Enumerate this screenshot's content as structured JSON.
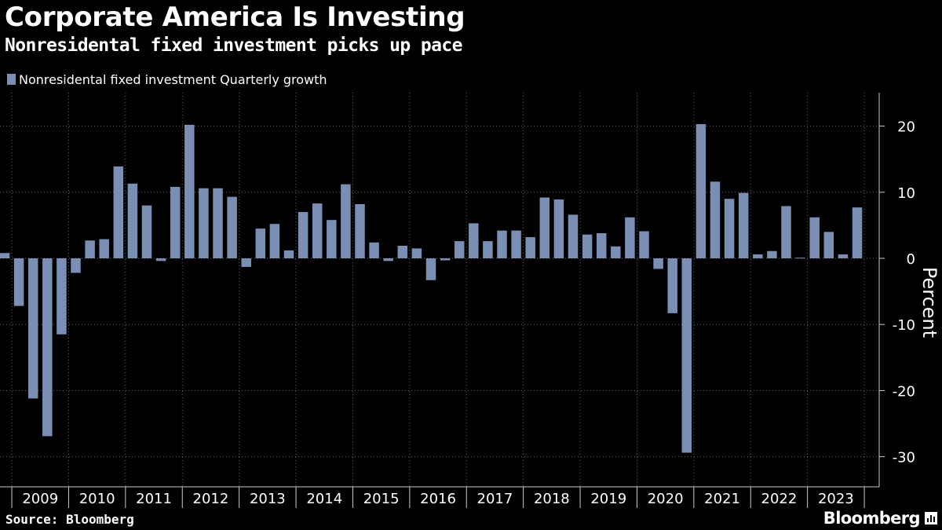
{
  "header": {
    "title": "Corporate America Is Investing",
    "subtitle": "Nonresidental fixed investment picks up pace"
  },
  "legend": {
    "label": "Nonresidental fixed investment Quarterly growth"
  },
  "footer": {
    "source": "Source: Bloomberg",
    "brand": "Bloomberg"
  },
  "colors": {
    "bar": "#7b8fb5",
    "background": "#000000",
    "grid": "#666666",
    "text": "#ffffff"
  },
  "chart_data": {
    "type": "bar",
    "title": "Corporate America Is Investing",
    "subtitle": "Nonresidental fixed investment picks up pace",
    "ylabel": "Percent",
    "ylim": [
      -35,
      25
    ],
    "yticks": [
      20,
      10,
      0,
      -10,
      -20,
      -30
    ],
    "legend_position": "top-left",
    "grid": true,
    "year_labels": [
      "2009",
      "2010",
      "2011",
      "2012",
      "2013",
      "2014",
      "2015",
      "2016",
      "2017",
      "2018",
      "2019",
      "2020",
      "2021",
      "2022",
      "2023"
    ],
    "series": [
      {
        "name": "Nonresidental fixed investment Quarterly growth",
        "start": "2008 Q4",
        "values": [
          0.8,
          -7.2,
          -21.2,
          -26.9,
          -11.5,
          -2.2,
          2.7,
          2.9,
          13.9,
          11.3,
          8.0,
          -0.4,
          10.8,
          20.2,
          10.6,
          10.6,
          9.3,
          -1.3,
          4.5,
          5.2,
          1.2,
          7.0,
          8.3,
          5.8,
          11.2,
          8.2,
          2.4,
          -0.4,
          1.9,
          1.5,
          -3.3,
          -0.3,
          2.6,
          5.3,
          2.6,
          4.2,
          4.2,
          3.2,
          9.2,
          8.9,
          6.6,
          3.6,
          3.8,
          1.8,
          6.2,
          4.1,
          -1.6,
          -8.3,
          -29.4,
          20.3,
          11.6,
          9.0,
          9.9,
          0.6,
          1.1,
          7.9,
          0.1,
          6.2,
          4.0,
          0.6,
          7.7
        ]
      }
    ]
  }
}
